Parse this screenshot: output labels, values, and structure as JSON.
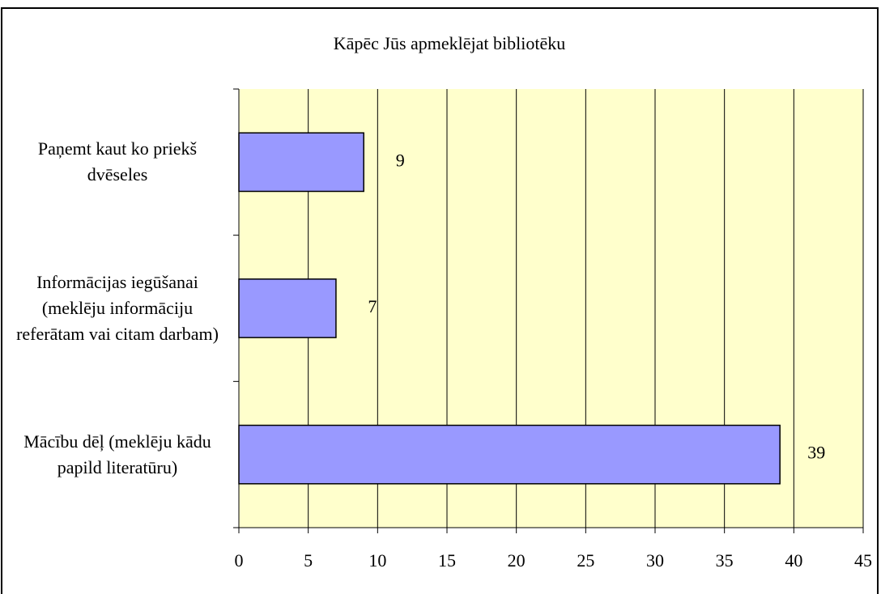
{
  "chart_data": {
    "type": "barh",
    "title": "Kāpēc Jūs apmeklējat bibliotēku",
    "categories": [
      "Paņemt kaut ko priekš dvēseles",
      "Informācijas iegūšanai (meklēju informāciju referātam vai citam darbam)",
      "Mācību dēļ (meklēju kādu papild literatūru)"
    ],
    "values": [
      9,
      7,
      39
    ],
    "color": "#9999ff",
    "plot_background": "#ffffcc",
    "xlim": [
      0,
      45
    ],
    "xticks": [
      0,
      5,
      10,
      15,
      20,
      25,
      30,
      35,
      40,
      45
    ],
    "grid": true
  }
}
